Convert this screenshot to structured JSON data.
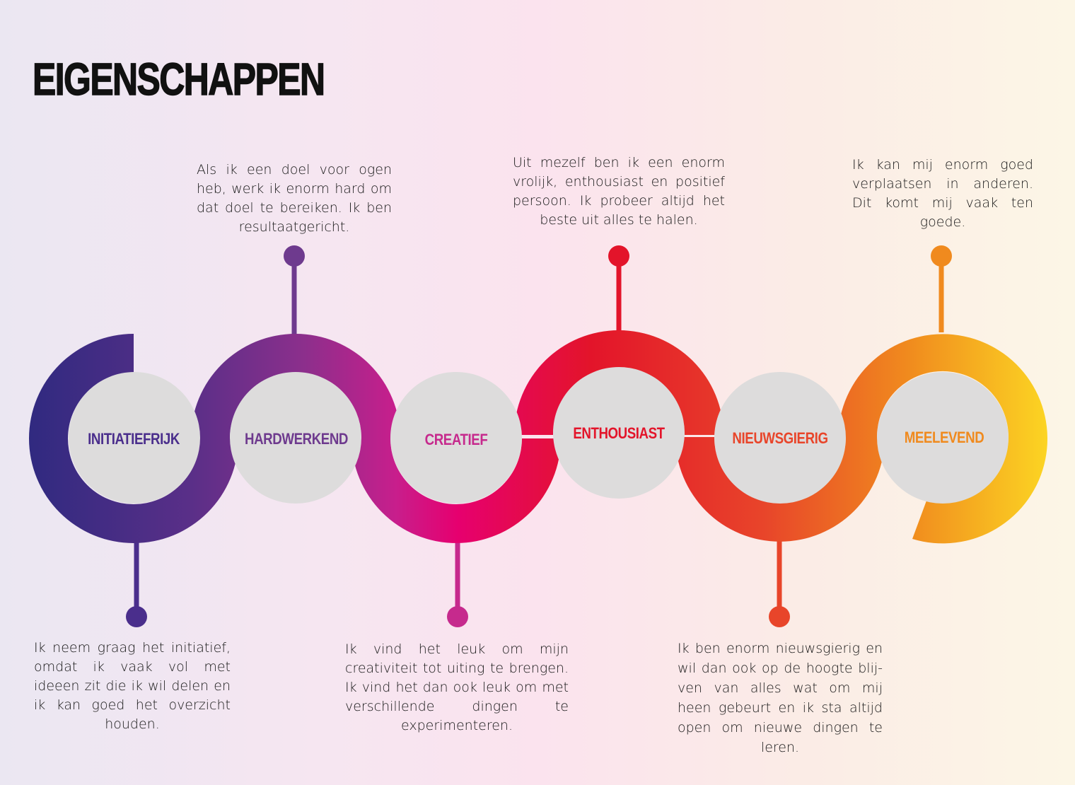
{
  "title": "EIGENSCHAPPEN",
  "colors": {
    "gradient": [
      "#302a80",
      "#6a2f8a",
      "#c81e8c",
      "#e6006f",
      "#e3142a",
      "#e8452a",
      "#f08a1e",
      "#fcd623"
    ],
    "circle_fill": "#dddcdc"
  },
  "traits": [
    {
      "label": "INITIATIEFRIJK",
      "color": "#4a2e8c",
      "description": "Ik neem graag het initiatief, omdat ik vaak vol met ideeen zit die ik wil delen en ik kan goed het overzicht houden."
    },
    {
      "label": "HARDWERKEND",
      "color": "#6e3a8e",
      "description": "Als ik een doel voor ogen heb, werk ik enorm hard om dat doel te bereiken. Ik ben resultaatgericht."
    },
    {
      "label": "CREATIEF",
      "color": "#c62a8d",
      "description": "Ik vind het leuk om mijn creativiteit tot uiting te brengen. Ik vind het dan ook leuk om met verschillende dingen te experimenteren."
    },
    {
      "label": "ENTHOUSIAST",
      "color": "#e3142a",
      "description": "Uit mezelf ben ik een enorm vrolijk, enthousiast en positief persoon. Ik probeer altijd het beste uit alles te halen."
    },
    {
      "label": "NIEUWSGIERIG",
      "color": "#e8452a",
      "description": "Ik ben enorm nieuwsgierig en wil dan ook op de hoogte blij-ven van alles wat om mij heen gebeurt en ik sta altijd open om nieuwe dingen te leren."
    },
    {
      "label": "MEELEVEND",
      "color": "#f08a1e",
      "description": "Ik kan mij enorm goed verplaatsen in anderen. Dit komt mij vaak ten goede."
    }
  ]
}
